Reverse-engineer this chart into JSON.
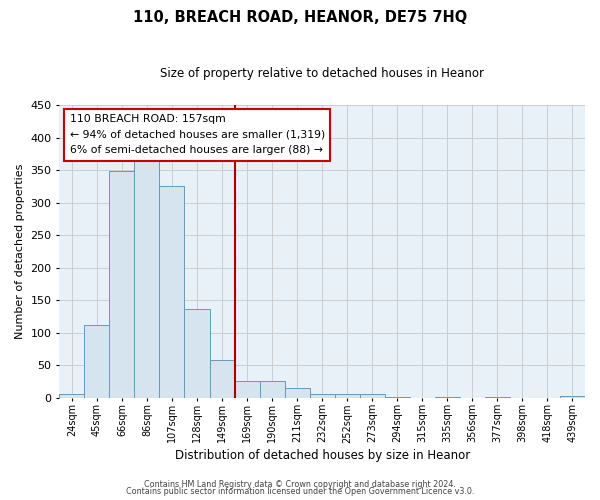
{
  "title": "110, BREACH ROAD, HEANOR, DE75 7HQ",
  "subtitle": "Size of property relative to detached houses in Heanor",
  "xlabel": "Distribution of detached houses by size in Heanor",
  "ylabel": "Number of detached properties",
  "bar_labels": [
    "24sqm",
    "45sqm",
    "66sqm",
    "86sqm",
    "107sqm",
    "128sqm",
    "149sqm",
    "169sqm",
    "190sqm",
    "211sqm",
    "232sqm",
    "252sqm",
    "273sqm",
    "294sqm",
    "315sqm",
    "335sqm",
    "356sqm",
    "377sqm",
    "398sqm",
    "418sqm",
    "439sqm"
  ],
  "bar_values": [
    5,
    112,
    349,
    374,
    326,
    136,
    57,
    25,
    25,
    14,
    6,
    6,
    5,
    1,
    0,
    1,
    0,
    1,
    0,
    0,
    2
  ],
  "bar_color": "#d6e4f0",
  "bar_edge_color": "#6699bb",
  "vline_color": "#aa0000",
  "ylim": [
    0,
    450
  ],
  "yticks": [
    0,
    50,
    100,
    150,
    200,
    250,
    300,
    350,
    400,
    450
  ],
  "annotation_title": "110 BREACH ROAD: 157sqm",
  "annotation_line1": "← 94% of detached houses are smaller (1,319)",
  "annotation_line2": "6% of semi-detached houses are larger (88) →",
  "annotation_box_color": "#ffffff",
  "annotation_box_edge": "#cc0000",
  "footer1": "Contains HM Land Registry data © Crown copyright and database right 2024.",
  "footer2": "Contains public sector information licensed under the Open Government Licence v3.0.",
  "plot_bg_color": "#e8f0f8",
  "fig_bg_color": "#ffffff",
  "grid_color": "#c8c8c8"
}
